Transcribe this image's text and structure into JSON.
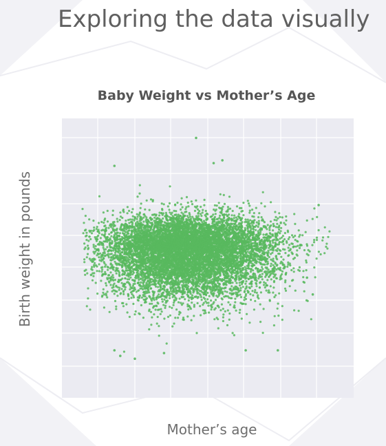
{
  "slide": {
    "title": "Exploring the data visually"
  },
  "colors": {
    "point": "#58b85e",
    "plot_background": "#ebebf2",
    "grid": "#ffffff",
    "decoration": "#f2f2f6"
  },
  "chart_data": {
    "type": "scatter",
    "title": "Baby Weight vs Mother’s Age",
    "xlabel": "Mother’s age",
    "ylabel": "Birth weight in pounds",
    "grid": true,
    "legend": "none",
    "tick_labels_visible": false,
    "xlim": [
      0,
      1
    ],
    "ylim": [
      0,
      1
    ],
    "distribution": {
      "description_values": "dense elliptical cloud; values are relative positions in plot area (axis ticks not shown)",
      "center": [
        0.43,
        0.53
      ],
      "spread": [
        0.14,
        0.06
      ],
      "count_estimate": 9000
    },
    "outliers": [
      {
        "x": 0.46,
        "y": 0.93
      },
      {
        "x": 0.18,
        "y": 0.83
      },
      {
        "x": 0.52,
        "y": 0.84
      },
      {
        "x": 0.55,
        "y": 0.85
      },
      {
        "x": 0.88,
        "y": 0.69
      },
      {
        "x": 0.1,
        "y": 0.44
      },
      {
        "x": 0.18,
        "y": 0.17
      },
      {
        "x": 0.2,
        "y": 0.15
      },
      {
        "x": 0.25,
        "y": 0.14
      },
      {
        "x": 0.35,
        "y": 0.16
      },
      {
        "x": 0.63,
        "y": 0.17
      },
      {
        "x": 0.74,
        "y": 0.17
      },
      {
        "x": 0.84,
        "y": 0.43
      },
      {
        "x": 0.86,
        "y": 0.37
      }
    ]
  }
}
